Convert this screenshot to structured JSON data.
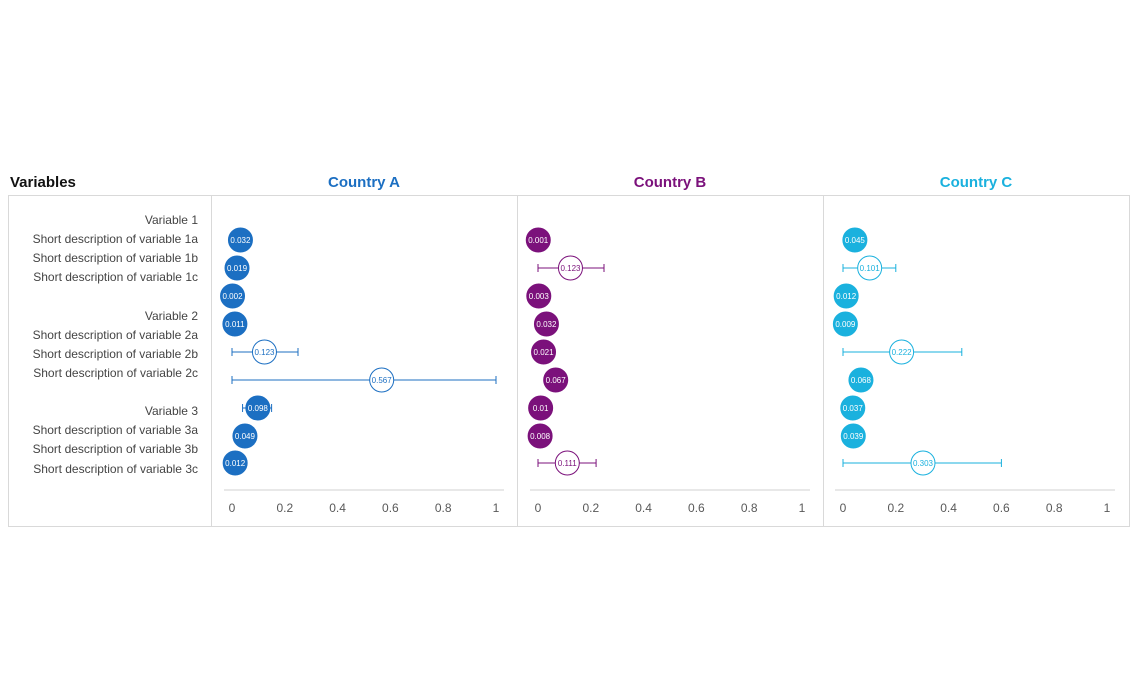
{
  "header": {
    "variables_title": "Variables"
  },
  "row_labels": [
    "Variable 1",
    "Short description of variable 1a",
    "Short description of variable 1b",
    "Short description of variable 1c",
    "Variable 2",
    "Short description of variable 2a",
    "Short description of variable 2b",
    "Short description of variable 2c",
    "Variable 3",
    "Short description of variable 3a",
    "Short description of variable 3b",
    "Short description of variable 3c"
  ],
  "chart_data": {
    "type": "scatter",
    "xlim": [
      0,
      1
    ],
    "x_ticks": [
      "0",
      "0.2",
      "0.4",
      "0.6",
      "0.8",
      "1"
    ],
    "panels": [
      {
        "title": "Country A",
        "color": "#1c6fc2",
        "points": [
          {
            "value": 0.032,
            "label": "0.032",
            "filled": true
          },
          {
            "value": 0.019,
            "label": "0.019",
            "filled": true
          },
          {
            "value": 0.002,
            "label": "0.002",
            "filled": true
          },
          {
            "value": 0.011,
            "label": "0.011",
            "filled": true
          },
          {
            "value": 0.123,
            "label": "0.123",
            "filled": false,
            "ci": [
              0.0,
              0.25
            ]
          },
          {
            "value": 0.567,
            "label": "0.567",
            "filled": false,
            "ci": [
              0.0,
              1.0
            ]
          },
          {
            "value": 0.098,
            "label": "0.098",
            "filled": true,
            "ci": [
              0.04,
              0.15
            ]
          },
          {
            "value": 0.049,
            "label": "0.049",
            "filled": true
          },
          {
            "value": 0.012,
            "label": "0.012",
            "filled": true
          }
        ]
      },
      {
        "title": "Country B",
        "color": "#7b117b",
        "points": [
          {
            "value": 0.001,
            "label": "0.001",
            "filled": true
          },
          {
            "value": 0.123,
            "label": "0.123",
            "filled": false,
            "ci": [
              0.0,
              0.25
            ]
          },
          {
            "value": 0.003,
            "label": "0.003",
            "filled": true
          },
          {
            "value": 0.032,
            "label": "0.032",
            "filled": true
          },
          {
            "value": 0.021,
            "label": "0.021",
            "filled": true
          },
          {
            "value": 0.067,
            "label": "0.067",
            "filled": true
          },
          {
            "value": 0.01,
            "label": "0.01",
            "filled": true
          },
          {
            "value": 0.008,
            "label": "0.008",
            "filled": true
          },
          {
            "value": 0.111,
            "label": "0.111",
            "filled": false,
            "ci": [
              0.0,
              0.22
            ]
          }
        ]
      },
      {
        "title": "Country C",
        "color": "#1ab1de",
        "points": [
          {
            "value": 0.045,
            "label": "0.045",
            "filled": true
          },
          {
            "value": 0.101,
            "label": "0.101",
            "filled": false,
            "ci": [
              0.0,
              0.2
            ]
          },
          {
            "value": 0.012,
            "label": "0.012",
            "filled": true
          },
          {
            "value": 0.009,
            "label": "0.009",
            "filled": true
          },
          {
            "value": 0.222,
            "label": "0.222",
            "filled": false,
            "ci": [
              0.0,
              0.45
            ]
          },
          {
            "value": 0.068,
            "label": "0.068",
            "filled": true
          },
          {
            "value": 0.037,
            "label": "0.037",
            "filled": true
          },
          {
            "value": 0.039,
            "label": "0.039",
            "filled": true
          },
          {
            "value": 0.303,
            "label": "0.303",
            "filled": false,
            "ci": [
              0.0,
              0.6
            ]
          }
        ]
      }
    ]
  }
}
